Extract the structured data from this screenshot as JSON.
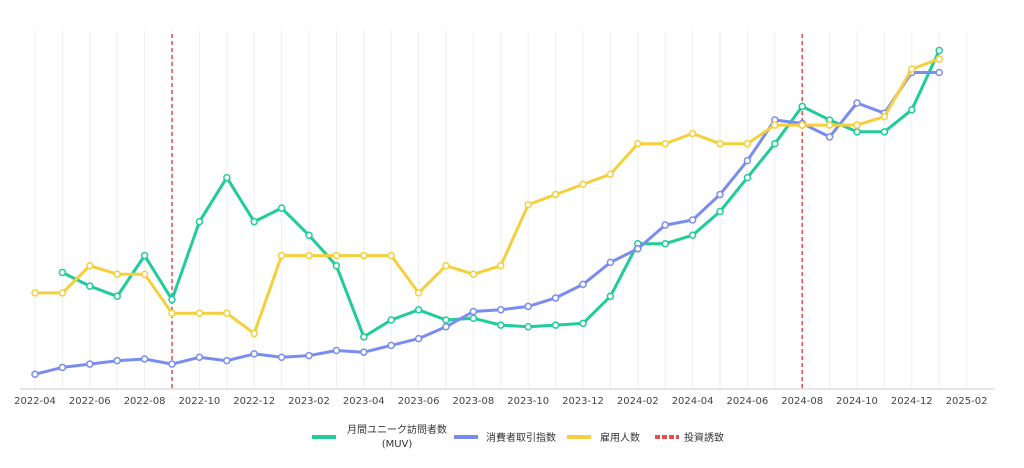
{
  "chart_data": {
    "type": "line",
    "title": "",
    "xlabel": "",
    "ylabel": "",
    "grid": true,
    "legend_position": "bottom",
    "x_ticks": [
      "2022-04",
      "2022-06",
      "2022-08",
      "2022-10",
      "2022-12",
      "2023-02",
      "2023-04",
      "2023-06",
      "2023-08",
      "2023-10",
      "2023-12",
      "2024-02",
      "2024-04",
      "2024-06",
      "2024-08",
      "2024-10",
      "2024-12",
      "2025-02"
    ],
    "ylim": [
      0,
      100
    ],
    "series": [
      {
        "name": "月間ユニーク訪問者数",
        "name_sub": "(MUV)",
        "color": "#1fcc9a",
        "x": [
          "2022-05",
          "2022-06",
          "2022-07",
          "2022-08",
          "2022-09",
          "2022-10",
          "2022-11",
          "2022-12",
          "2023-01",
          "2023-02",
          "2023-03",
          "2023-04",
          "2023-05",
          "2023-06",
          "2023-07",
          "2023-08",
          "2023-09",
          "2023-10",
          "2023-11",
          "2023-12",
          "2024-01",
          "2024-02",
          "2024-03",
          "2024-04",
          "2024-05",
          "2024-06",
          "2024-07",
          "2024-08",
          "2024-09",
          "2024-10",
          "2024-11",
          "2024-12",
          "2025-01"
        ],
        "values": [
          32,
          28,
          25,
          37,
          24,
          47,
          60,
          47,
          51,
          43,
          34,
          13,
          18,
          21,
          18,
          18.5,
          16.5,
          16,
          16.5,
          17,
          25,
          40.5,
          40.5,
          43,
          50,
          60,
          70,
          81,
          77,
          73.5,
          73.5,
          80,
          97.5
        ]
      },
      {
        "name": "消費者取引指数",
        "color": "#7b8cf0",
        "x": [
          "2022-04",
          "2022-05",
          "2022-06",
          "2022-07",
          "2022-08",
          "2022-09",
          "2022-10",
          "2022-11",
          "2022-12",
          "2023-01",
          "2023-02",
          "2023-03",
          "2023-04",
          "2023-05",
          "2023-06",
          "2023-07",
          "2023-08",
          "2023-09",
          "2023-10",
          "2023-11",
          "2023-12",
          "2024-01",
          "2024-02",
          "2024-03",
          "2024-04",
          "2024-05",
          "2024-06",
          "2024-07",
          "2024-08",
          "2024-09",
          "2024-10",
          "2024-11",
          "2024-12",
          "2025-01"
        ],
        "values": [
          2,
          4,
          5,
          6,
          6.5,
          5,
          7,
          6,
          8,
          7,
          7.5,
          9,
          8.5,
          10.5,
          12.5,
          16,
          20.5,
          21,
          22,
          24.5,
          28.5,
          35,
          39,
          46,
          47.5,
          55,
          65,
          77,
          76,
          72,
          82,
          79,
          91,
          91
        ]
      },
      {
        "name": "雇用人数",
        "color": "#f5d03c",
        "x": [
          "2022-04",
          "2022-05",
          "2022-06",
          "2022-07",
          "2022-08",
          "2022-09",
          "2022-10",
          "2022-11",
          "2022-12",
          "2023-01",
          "2023-02",
          "2023-03",
          "2023-04",
          "2023-05",
          "2023-06",
          "2023-07",
          "2023-08",
          "2023-09",
          "2023-10",
          "2023-11",
          "2023-12",
          "2024-01",
          "2024-02",
          "2024-03",
          "2024-04",
          "2024-05",
          "2024-06",
          "2024-07",
          "2024-08",
          "2024-09",
          "2024-10",
          "2024-11",
          "2024-12",
          "2025-01"
        ],
        "values": [
          26,
          26,
          34,
          31.5,
          31.5,
          20,
          20,
          20,
          14,
          37,
          37,
          37,
          37,
          37,
          26,
          34,
          31.5,
          34,
          52,
          55,
          58,
          61,
          70,
          70,
          73,
          70,
          70,
          75.5,
          75.5,
          75.5,
          75.5,
          78,
          92,
          95
        ]
      }
    ],
    "vlines": [
      {
        "name": "投資誘致",
        "color": "#e84c4c",
        "x": [
          "2022-09",
          "2024-08"
        ]
      }
    ]
  }
}
